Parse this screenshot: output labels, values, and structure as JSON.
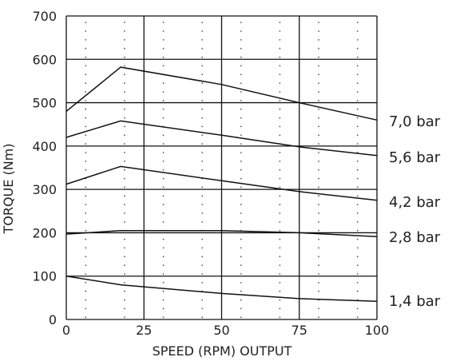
{
  "chart_data": {
    "type": "line",
    "xlabel": "SPEED (RPM) OUTPUT",
    "ylabel": "TORQUE (Nm)",
    "xlim": [
      0,
      100
    ],
    "ylim": [
      0,
      700
    ],
    "x_ticks": [
      "0",
      "25",
      "50",
      "75",
      "100"
    ],
    "y_ticks": [
      "0",
      "100",
      "200",
      "300",
      "400",
      "500",
      "600",
      "700"
    ],
    "grid": true,
    "legend": "none",
    "series": [
      {
        "name": "7,0  bar",
        "points": [
          [
            0,
            480
          ],
          [
            17.5,
            582
          ],
          [
            50,
            542
          ],
          [
            75,
            500
          ],
          [
            100,
            460
          ]
        ]
      },
      {
        "name": "5,6  bar",
        "points": [
          [
            0,
            420
          ],
          [
            17.5,
            458
          ],
          [
            50,
            425
          ],
          [
            75,
            398
          ],
          [
            100,
            378
          ]
        ]
      },
      {
        "name": "4,2  bar",
        "points": [
          [
            0,
            312
          ],
          [
            17.5,
            353
          ],
          [
            50,
            320
          ],
          [
            75,
            295
          ],
          [
            100,
            275
          ]
        ]
      },
      {
        "name": "2,8  bar",
        "points": [
          [
            0,
            197
          ],
          [
            17.5,
            205
          ],
          [
            50,
            205
          ],
          [
            75,
            200
          ],
          [
            100,
            191
          ]
        ]
      },
      {
        "name": "1,4  bar",
        "points": [
          [
            0,
            100
          ],
          [
            17.5,
            80
          ],
          [
            50,
            60
          ],
          [
            75,
            48
          ],
          [
            100,
            42
          ]
        ]
      }
    ]
  }
}
